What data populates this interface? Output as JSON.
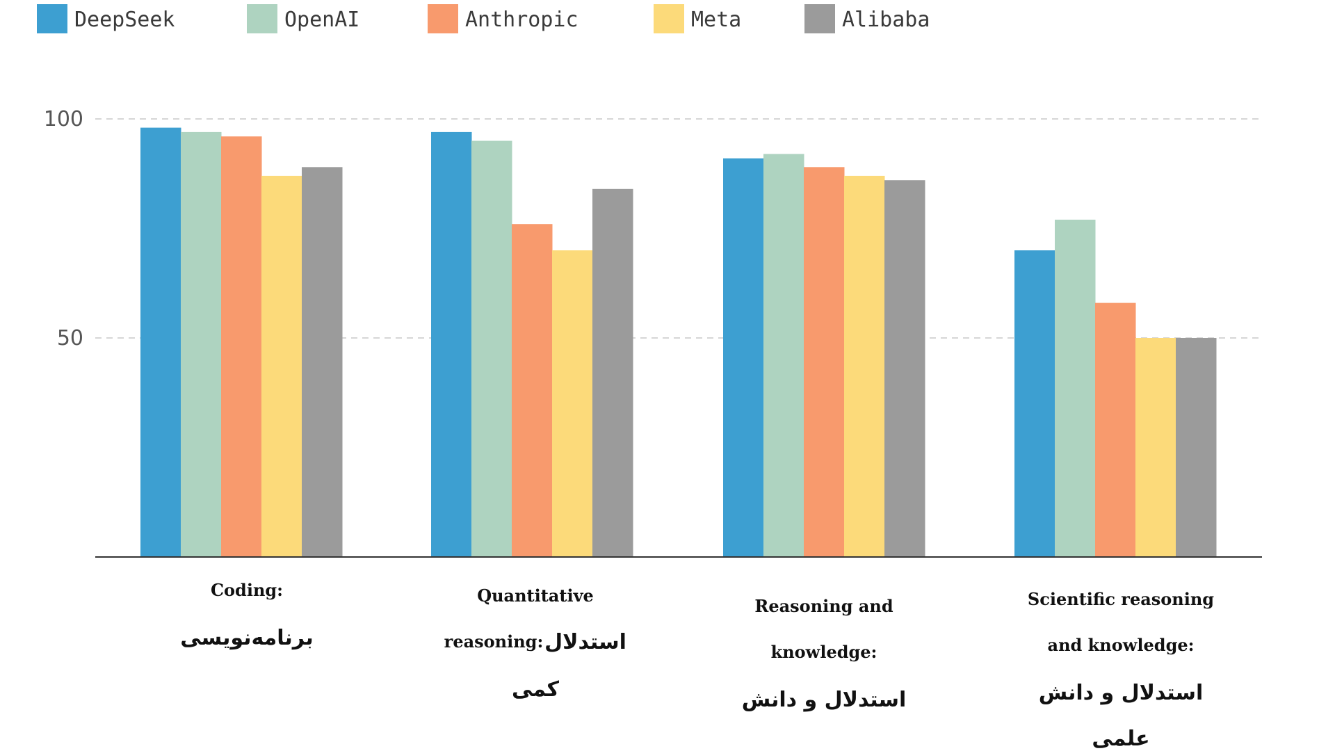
{
  "chart_data": {
    "type": "bar",
    "categories": [
      {
        "en": "Coding:",
        "fa": "برنامه‌نویسی",
        "lines": [
          {
            "text": "Coding:",
            "lang": "en"
          },
          {
            "text": "برنامه‌نویسی",
            "lang": "fa"
          }
        ]
      },
      {
        "en": "Quantitative reasoning:",
        "fa": "استدلال کمی",
        "lines": [
          {
            "text": "Quantitative",
            "lang": "en"
          },
          {
            "text": "reasoning:",
            "lang": "en",
            "inline_fa": "استدلال"
          },
          {
            "text": "کمی",
            "lang": "fa"
          }
        ]
      },
      {
        "en": "Reasoning and knowledge:",
        "fa": "استدلال و دانش",
        "lines": [
          {
            "text": "Reasoning and",
            "lang": "en"
          },
          {
            "text": "knowledge:",
            "lang": "en"
          },
          {
            "text": "استدلال و دانش",
            "lang": "fa"
          }
        ]
      },
      {
        "en": "Scientific reasoning and knowledge:",
        "fa": "استدلال و دانش علمی",
        "lines": [
          {
            "text": "Scientific reasoning",
            "lang": "en"
          },
          {
            "text": "and knowledge:",
            "lang": "en"
          },
          {
            "text": "استدلال و دانش",
            "lang": "fa"
          },
          {
            "text": "علمی",
            "lang": "fa"
          }
        ]
      }
    ],
    "series": [
      {
        "name": "DeepSeek",
        "color": "#3d9fd1",
        "values": [
          98,
          97,
          91,
          70
        ]
      },
      {
        "name": "OpenAI",
        "color": "#aed3c0",
        "values": [
          97,
          95,
          92,
          77
        ]
      },
      {
        "name": "Anthropic",
        "color": "#f89a6d",
        "values": [
          96,
          76,
          89,
          58
        ]
      },
      {
        "name": "Meta",
        "color": "#fcda7a",
        "values": [
          87,
          70,
          87,
          50
        ]
      },
      {
        "name": "Alibaba",
        "color": "#9b9b9b",
        "values": [
          89,
          84,
          86,
          50
        ]
      }
    ],
    "yticks": [
      50,
      100
    ],
    "ylim": [
      0,
      100
    ],
    "grid": true,
    "legend_position": "top-left",
    "title": "",
    "xlabel": "",
    "ylabel": ""
  }
}
